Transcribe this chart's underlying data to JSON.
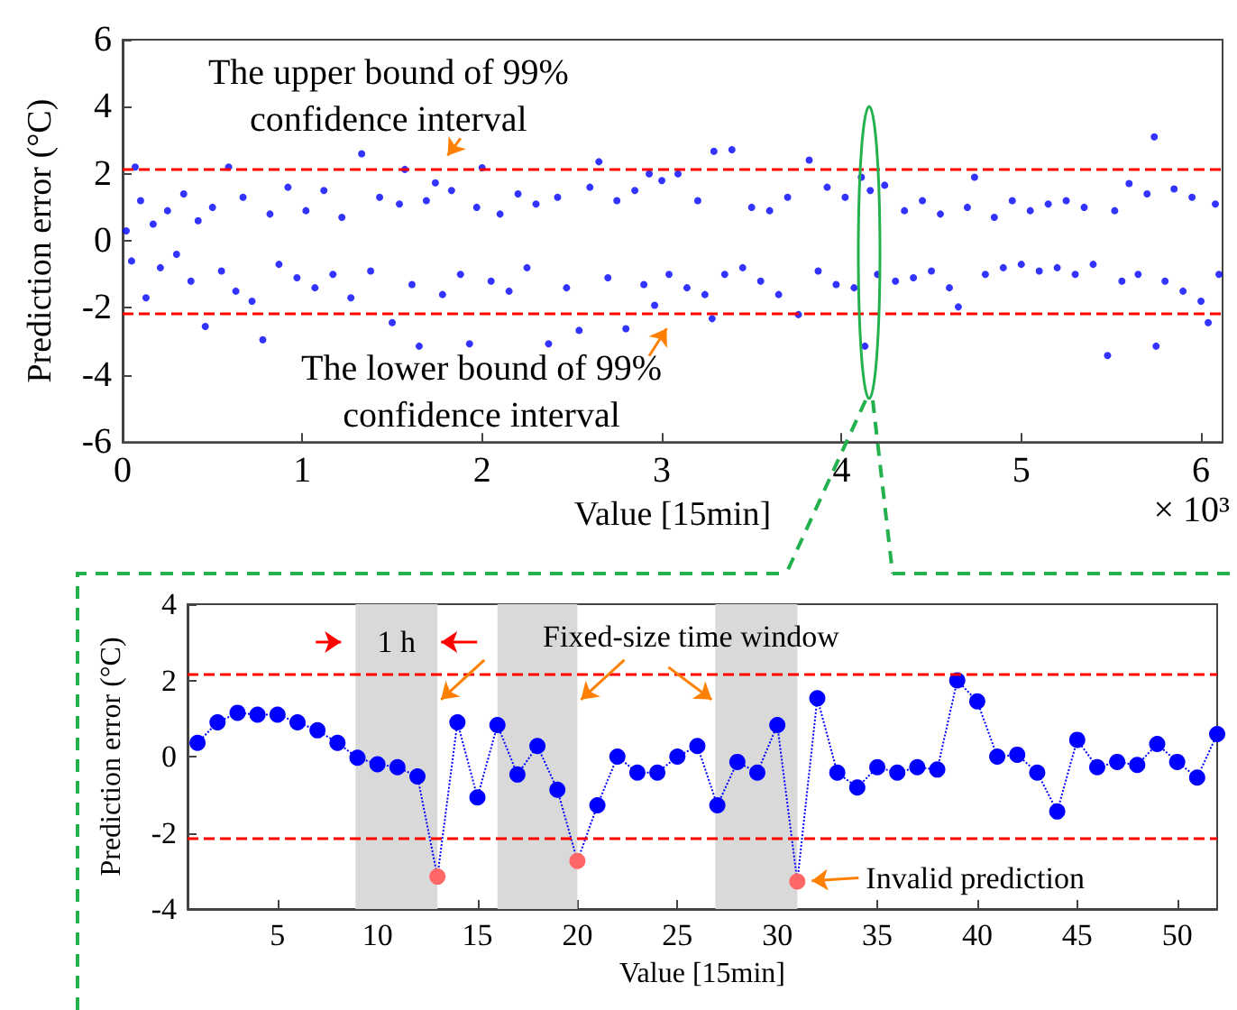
{
  "chart_data": [
    {
      "type": "scatter",
      "xlabel": "Value [15min]",
      "ylabel": "Prediction error (°C)",
      "marker": "circle",
      "x": [
        0.02,
        0.05,
        0.07,
        0.1,
        0.13,
        0.17,
        0.21,
        0.25,
        0.3,
        0.34,
        0.38,
        0.42,
        0.46,
        0.5,
        0.55,
        0.59,
        0.63,
        0.67,
        0.72,
        0.78,
        0.82,
        0.87,
        0.92,
        0.97,
        1.02,
        1.07,
        1.12,
        1.17,
        1.22,
        1.27,
        1.33,
        1.38,
        1.43,
        1.5,
        1.54,
        1.57,
        1.61,
        1.65,
        1.69,
        1.74,
        1.78,
        1.83,
        1.88,
        1.93,
        1.97,
        2.0,
        2.05,
        2.1,
        2.15,
        2.2,
        2.25,
        2.3,
        2.37,
        2.42,
        2.47,
        2.54,
        2.6,
        2.65,
        2.7,
        2.75,
        2.8,
        2.85,
        2.9,
        2.93,
        2.96,
        3.0,
        3.04,
        3.09,
        3.14,
        3.2,
        3.24,
        3.28,
        3.29,
        3.35,
        3.39,
        3.45,
        3.5,
        3.55,
        3.6,
        3.65,
        3.7,
        3.76,
        3.82,
        3.87,
        3.92,
        3.97,
        4.02,
        4.07,
        4.11,
        4.13,
        4.16,
        4.2,
        4.24,
        4.3,
        4.35,
        4.4,
        4.45,
        4.5,
        4.55,
        4.6,
        4.65,
        4.7,
        4.74,
        4.8,
        4.85,
        4.9,
        4.95,
        5.0,
        5.05,
        5.1,
        5.15,
        5.2,
        5.25,
        5.3,
        5.35,
        5.4,
        5.48,
        5.52,
        5.56,
        5.6,
        5.65,
        5.7,
        5.74,
        5.75,
        5.8,
        5.85,
        5.9,
        5.95,
        6.0,
        6.04,
        6.08,
        6.1
      ],
      "series": [
        {
          "color": "#0000ff",
          "values": [
            0.3,
            -0.6,
            2.2,
            1.2,
            -1.7,
            0.5,
            -0.8,
            0.9,
            -0.4,
            1.4,
            -1.2,
            0.6,
            -2.55,
            1.0,
            -0.9,
            2.2,
            -1.5,
            1.3,
            -1.8,
            -2.95,
            0.8,
            -0.7,
            1.6,
            -1.1,
            0.9,
            -1.4,
            1.5,
            -1.0,
            0.7,
            -1.7,
            2.6,
            -0.9,
            1.3,
            -2.44,
            1.1,
            2.13,
            -1.3,
            -3.14,
            1.2,
            1.73,
            -1.6,
            1.5,
            -1.0,
            -3.07,
            1.0,
            2.18,
            -1.2,
            0.8,
            -1.5,
            1.4,
            -0.8,
            1.1,
            -3.07,
            1.3,
            -1.4,
            -2.67,
            1.6,
            2.36,
            -1.1,
            1.2,
            -2.62,
            1.5,
            -1.3,
            2.0,
            -1.92,
            1.8,
            -1.0,
            2.0,
            -1.4,
            1.2,
            -1.6,
            -2.32,
            2.67,
            -1.0,
            2.72,
            -0.8,
            1.0,
            -1.2,
            0.9,
            -1.6,
            1.3,
            -2.2,
            2.41,
            -0.9,
            1.6,
            -1.3,
            1.3,
            -1.4,
            1.9,
            -3.14,
            1.5,
            -1.0,
            1.66,
            -1.2,
            0.9,
            -1.1,
            1.2,
            -0.9,
            0.8,
            -1.4,
            -1.97,
            1.0,
            1.9,
            -1.0,
            0.7,
            -0.8,
            1.2,
            -0.7,
            0.9,
            -0.9,
            1.1,
            -0.8,
            1.2,
            -1.0,
            1.0,
            -0.7,
            -3.42,
            0.9,
            -1.2,
            1.71,
            -1.0,
            1.4,
            3.1,
            -3.14,
            -1.2,
            1.55,
            -1.5,
            1.3,
            -1.8,
            -2.44,
            1.1,
            -1.0
          ]
        }
      ],
      "xlim": [
        0,
        6.12
      ],
      "xticks": [
        0,
        1,
        2,
        3,
        4,
        5,
        6
      ],
      "ylim": [
        -6,
        6
      ],
      "yticks": [
        -6,
        -4,
        -2,
        0,
        2,
        4,
        6
      ],
      "ref_lines": [
        {
          "axis": "y",
          "value": 2.15,
          "color": "#ff0000",
          "line_style": "dashed"
        },
        {
          "axis": "y",
          "value": -2.15,
          "color": "#ff0000",
          "line_style": "dashed"
        }
      ],
      "annotations": [
        {
          "text": "The upper bound of 99%\nconfidence interval",
          "x": 1.76,
          "y": 2.2
        },
        {
          "text": "The lower bound of 99%\nconfidence interval",
          "x": 3.07,
          "y": -2.25
        },
        "× 10³"
      ]
    },
    {
      "type": "line",
      "xlabel": "Value [15min]",
      "ylabel": "Prediction error (°C)",
      "marker": "circle",
      "line_style": "dotted",
      "x": [
        1,
        2,
        3,
        4,
        5,
        6,
        7,
        8,
        9,
        10,
        11,
        12,
        13,
        14,
        15,
        16,
        17,
        18,
        19,
        20,
        21,
        22,
        23,
        24,
        25,
        26,
        27,
        28,
        29,
        30,
        31,
        32,
        33,
        34,
        35,
        36,
        37,
        38,
        39,
        40,
        41,
        42,
        43,
        44,
        45,
        46,
        47,
        48,
        49,
        50,
        51,
        52
      ],
      "series": [
        {
          "color": "#0000ff",
          "colors": [
            "#0000ff",
            "#0000ff",
            "#0000ff",
            "#0000ff",
            "#0000ff",
            "#0000ff",
            "#0000ff",
            "#0000ff",
            "#0000ff",
            "#0000ff",
            "#0000ff",
            "#0000ff",
            "#ff6666",
            "#0000ff",
            "#0000ff",
            "#0000ff",
            "#0000ff",
            "#0000ff",
            "#0000ff",
            "#ff6666",
            "#0000ff",
            "#0000ff",
            "#0000ff",
            "#0000ff",
            "#0000ff",
            "#0000ff",
            "#0000ff",
            "#0000ff",
            "#0000ff",
            "#0000ff",
            "#ff6666",
            "#0000ff",
            "#0000ff",
            "#0000ff",
            "#0000ff",
            "#0000ff",
            "#0000ff",
            "#0000ff",
            "#0000ff",
            "#0000ff",
            "#0000ff",
            "#0000ff",
            "#0000ff",
            "#0000ff",
            "#0000ff",
            "#0000ff",
            "#0000ff",
            "#0000ff",
            "#0000ff",
            "#0000ff",
            "#0000ff",
            "#0000ff"
          ],
          "values": [
            0.36,
            0.9,
            1.15,
            1.1,
            1.1,
            0.9,
            0.69,
            0.36,
            -0.03,
            -0.2,
            -0.28,
            -0.52,
            -3.15,
            0.9,
            -1.07,
            0.83,
            -0.47,
            0.28,
            -0.87,
            -2.74,
            -1.28,
            0.0,
            -0.42,
            -0.42,
            0.0,
            0.28,
            -1.28,
            -0.14,
            -0.42,
            0.83,
            -3.28,
            1.53,
            -0.42,
            -0.81,
            -0.28,
            -0.42,
            -0.28,
            -0.34,
            2.0,
            1.45,
            0.0,
            0.05,
            -0.42,
            -1.44,
            0.44,
            -0.28,
            -0.14,
            -0.22,
            0.33,
            -0.14,
            -0.55,
            0.59
          ]
        }
      ],
      "xlim": [
        0.5,
        52
      ],
      "xticks": [
        5,
        10,
        15,
        20,
        25,
        30,
        35,
        40,
        45,
        50
      ],
      "ylim": [
        -4,
        4
      ],
      "yticks": [
        -4,
        -2,
        0,
        2,
        4
      ],
      "ref_lines": [
        {
          "axis": "y",
          "value": 2.15,
          "color": "#ff0000",
          "line_style": "dashed"
        },
        {
          "axis": "y",
          "value": -2.15,
          "color": "#ff0000",
          "line_style": "dashed"
        }
      ],
      "bands": [
        {
          "axis": "x",
          "from": 8.9,
          "to": 13,
          "color": "#d9d9d9"
        },
        {
          "axis": "x",
          "from": 16,
          "to": 20,
          "color": "#d9d9d9"
        },
        {
          "axis": "x",
          "from": 26.9,
          "to": 31,
          "color": "#d9d9d9"
        }
      ],
      "annotations": [
        "1 h",
        {
          "text": "Fixed-size time window",
          "x": 20,
          "y": 1.4
        },
        {
          "text": "Invalid prediction",
          "x": 31,
          "y": -3.28
        }
      ]
    }
  ]
}
